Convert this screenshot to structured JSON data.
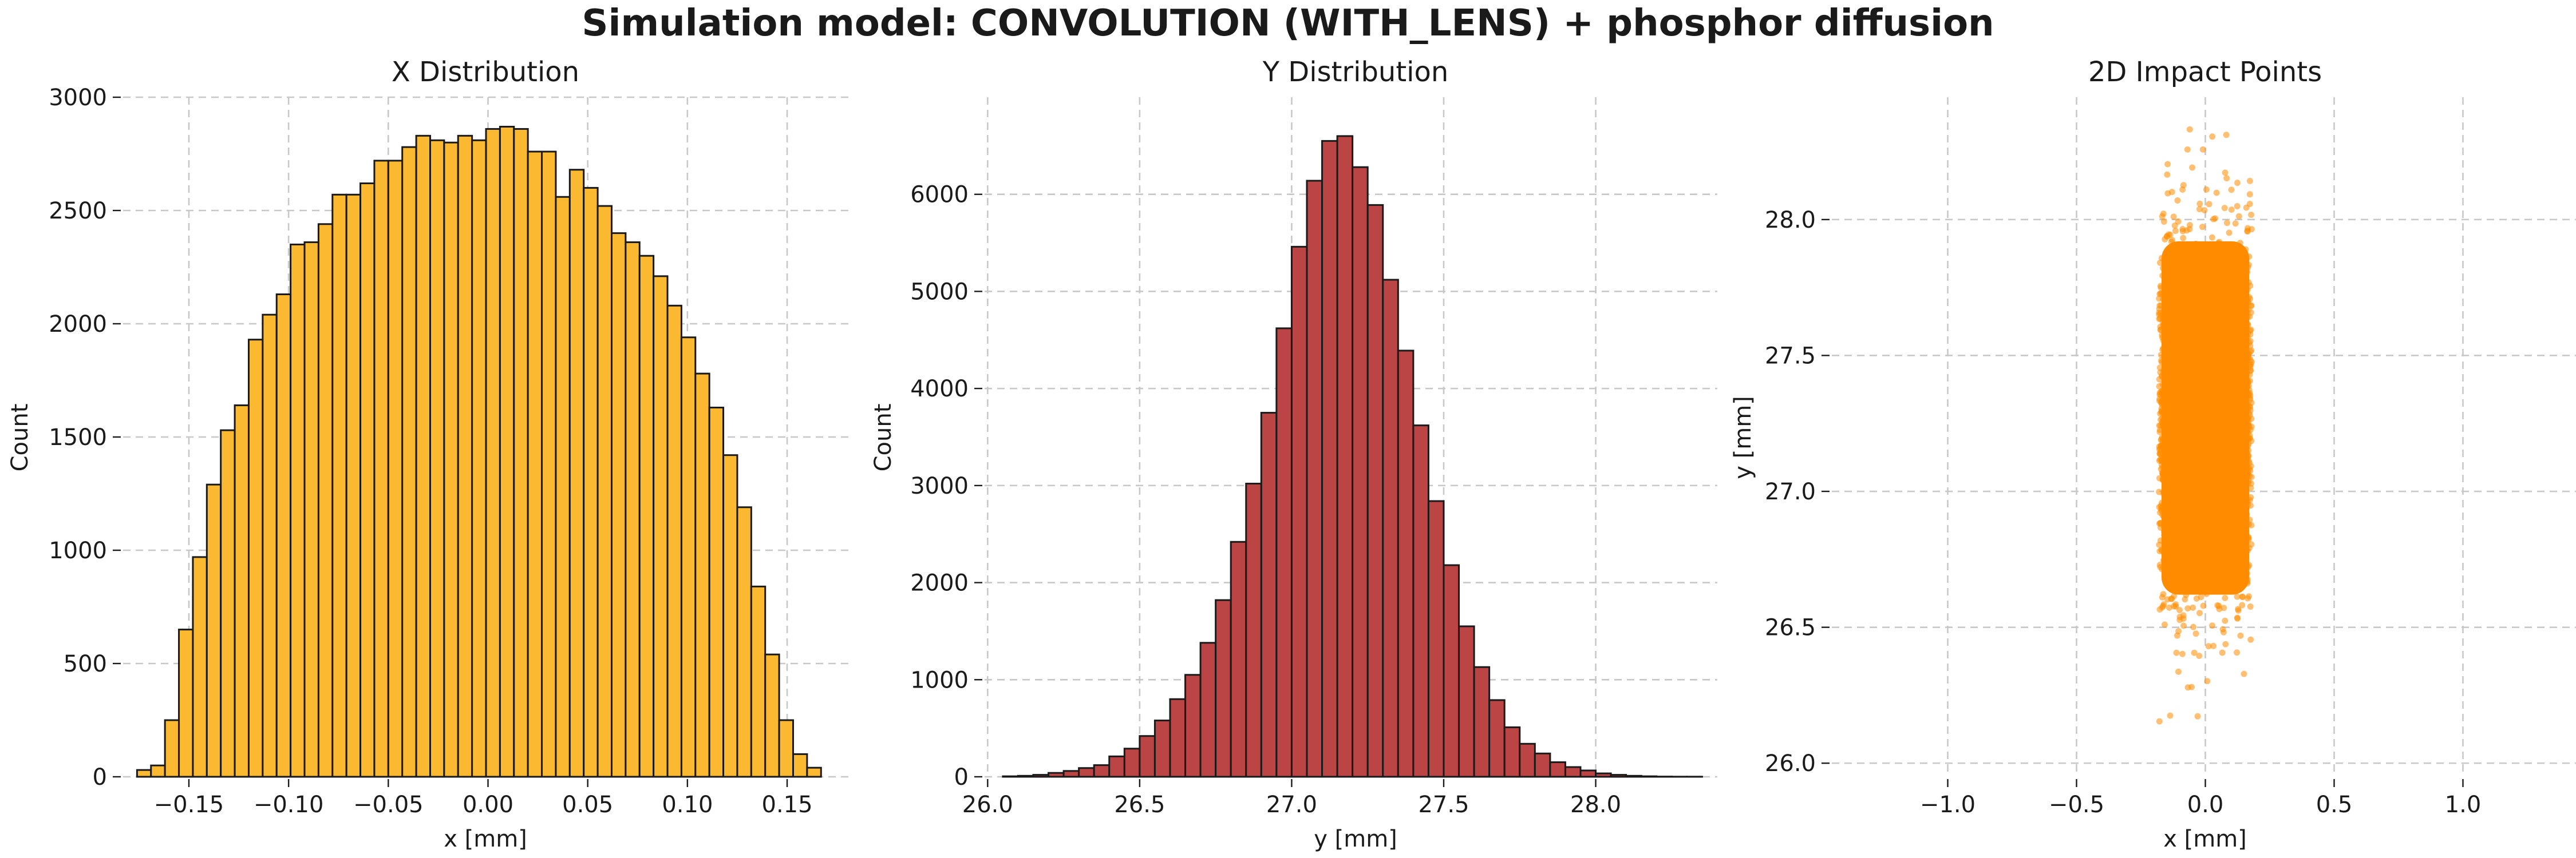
{
  "figure": {
    "suptitle": "Simulation model: CONVOLUTION (WITH_LENS) + phosphor diffusion"
  },
  "chart_data": [
    {
      "type": "bar",
      "subtype": "histogram",
      "title": "X Distribution",
      "xlabel": "x [mm]",
      "ylabel": "Count",
      "bin_start": -0.176,
      "bin_width": 0.007,
      "values": [
        30,
        50,
        250,
        650,
        970,
        1290,
        1530,
        1640,
        1930,
        2040,
        2130,
        2350,
        2360,
        2440,
        2570,
        2570,
        2620,
        2720,
        2720,
        2780,
        2830,
        2810,
        2800,
        2830,
        2810,
        2860,
        2870,
        2860,
        2760,
        2760,
        2560,
        2680,
        2600,
        2520,
        2400,
        2360,
        2300,
        2210,
        2080,
        1940,
        1780,
        1630,
        1420,
        1190,
        840,
        540,
        250,
        100,
        40
      ],
      "xlim": [
        -0.183,
        0.183
      ],
      "ylim": [
        0,
        3000
      ],
      "xticks": [
        -0.15,
        -0.1,
        -0.05,
        0.0,
        0.05,
        0.1,
        0.15
      ],
      "xtick_labels": [
        "−0.15",
        "−0.10",
        "−0.05",
        "0.00",
        "0.05",
        "0.10",
        "0.15"
      ],
      "yticks": [
        0,
        500,
        1000,
        1500,
        2000,
        2500,
        3000
      ],
      "ytick_labels": [
        "0",
        "500",
        "1000",
        "1500",
        "2000",
        "2500",
        "3000"
      ],
      "fill_color": "#fbb931",
      "edge_color": "#1a1a1a",
      "grid": true
    },
    {
      "type": "bar",
      "subtype": "histogram",
      "title": "Y Distribution",
      "xlabel": "y [mm]",
      "ylabel": "Count",
      "bin_start": 26.05,
      "bin_width": 0.05,
      "values": [
        5,
        10,
        20,
        40,
        60,
        90,
        120,
        210,
        290,
        420,
        580,
        800,
        1050,
        1380,
        1820,
        2420,
        3020,
        3750,
        4620,
        5460,
        6140,
        6550,
        6600,
        6280,
        5890,
        5120,
        4390,
        3620,
        2840,
        2180,
        1550,
        1130,
        790,
        510,
        340,
        240,
        150,
        100,
        65,
        35,
        20,
        10,
        5,
        2,
        1,
        1
      ],
      "xlim": [
        25.99,
        28.4
      ],
      "ylim": [
        0,
        7000
      ],
      "xticks": [
        26.0,
        26.5,
        27.0,
        27.5,
        28.0
      ],
      "xtick_labels": [
        "26.0",
        "26.5",
        "27.0",
        "27.5",
        "28.0"
      ],
      "yticks": [
        0,
        1000,
        2000,
        3000,
        4000,
        5000,
        6000
      ],
      "ytick_labels": [
        "0",
        "1000",
        "2000",
        "3000",
        "4000",
        "5000",
        "6000"
      ],
      "fill_color": "#bb4545",
      "edge_color": "#1a1a1a",
      "grid": true
    },
    {
      "type": "scatter",
      "title": "2D Impact Points",
      "xlabel": "x [mm]",
      "ylabel": "y [mm]",
      "x_range": [
        -0.18,
        0.18
      ],
      "y_center": 27.27,
      "y_sd": 0.33,
      "y_extent": [
        26.05,
        28.42
      ],
      "xlim": [
        -1.45,
        1.45
      ],
      "ylim": [
        25.95,
        28.45
      ],
      "xticks": [
        -1.0,
        -0.5,
        0.0,
        0.5,
        1.0
      ],
      "xtick_labels": [
        "−1.0",
        "−0.5",
        "0.0",
        "0.5",
        "1.0"
      ],
      "yticks": [
        26.0,
        26.5,
        27.0,
        27.5,
        28.0
      ],
      "ytick_labels": [
        "26.0",
        "26.5",
        "27.0",
        "27.5",
        "28.0"
      ],
      "point_color": "#ff8c00",
      "grid": true
    }
  ]
}
